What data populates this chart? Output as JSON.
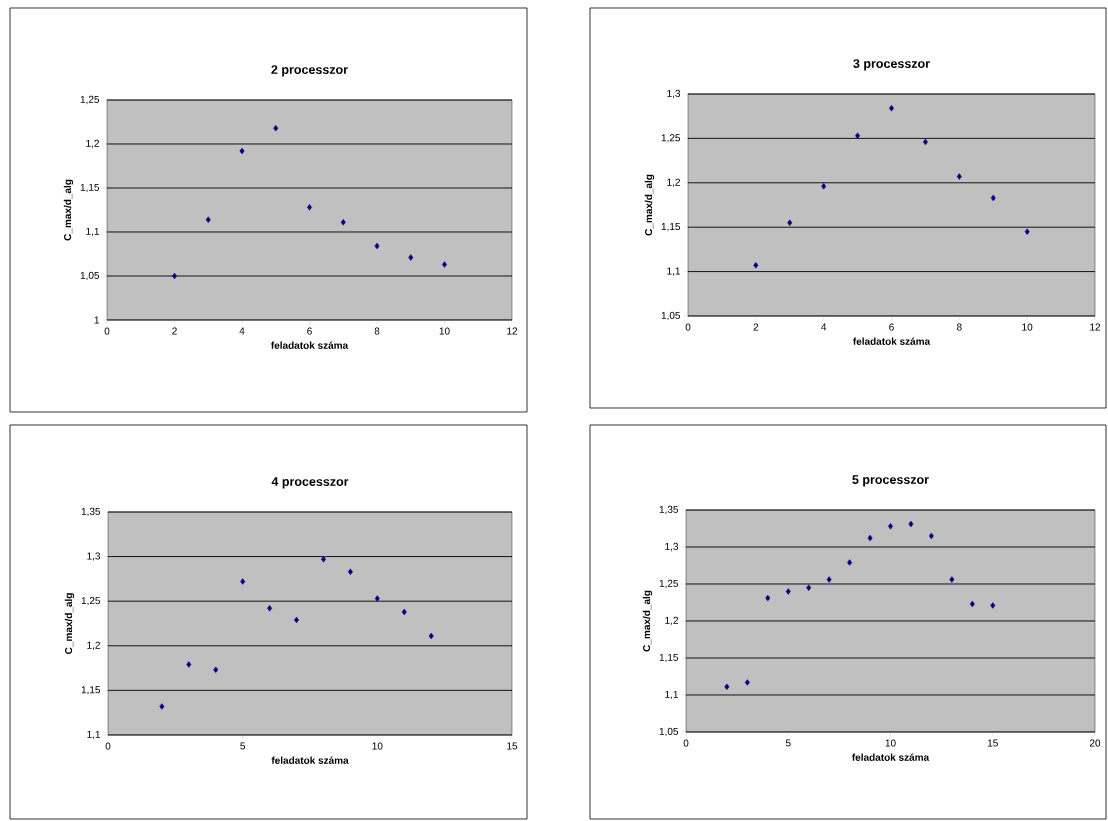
{
  "chart_data": [
    {
      "type": "scatter",
      "title": "2 processzor",
      "xlabel": "feladatok száma",
      "ylabel": "C_max/d_alg",
      "marker": "diamond",
      "grid": "y",
      "x": [
        2,
        3,
        4,
        5,
        6,
        7,
        8,
        9,
        10
      ],
      "series": [
        {
          "color": "#000080",
          "values": [
            1.05,
            1.114,
            1.192,
            1.218,
            1.128,
            1.111,
            1.084,
            1.071,
            1.063
          ]
        }
      ],
      "xlim": [
        0,
        12
      ],
      "xticks": [
        0,
        2,
        4,
        6,
        8,
        10,
        12
      ],
      "ylim": [
        1,
        1.25
      ],
      "yticks": [
        {
          "value": 1,
          "label": "1"
        },
        {
          "value": 1.05,
          "label": "1,05"
        },
        {
          "value": 1.1,
          "label": "1,1"
        },
        {
          "value": 1.15,
          "label": "1,15"
        },
        {
          "value": 1.2,
          "label": "1,2"
        },
        {
          "value": 1.25,
          "label": "1,25"
        }
      ]
    },
    {
      "type": "scatter",
      "title": "3 processzor",
      "xlabel": "feladatok száma",
      "ylabel": "C_max/d_alg",
      "marker": "diamond",
      "grid": "y",
      "x": [
        2,
        3,
        4,
        5,
        6,
        7,
        8,
        9,
        10
      ],
      "series": [
        {
          "color": "#000080",
          "values": [
            1.107,
            1.155,
            1.196,
            1.253,
            1.284,
            1.246,
            1.207,
            1.183,
            1.145
          ]
        }
      ],
      "xlim": [
        0,
        12
      ],
      "xticks": [
        0,
        2,
        4,
        6,
        8,
        10,
        12
      ],
      "ylim": [
        1.05,
        1.3
      ],
      "yticks": [
        {
          "value": 1.05,
          "label": "1,05"
        },
        {
          "value": 1.1,
          "label": "1,1"
        },
        {
          "value": 1.15,
          "label": "1,15"
        },
        {
          "value": 1.2,
          "label": "1,2"
        },
        {
          "value": 1.25,
          "label": "1,25"
        },
        {
          "value": 1.3,
          "label": "1,3"
        }
      ]
    },
    {
      "type": "scatter",
      "title": "4 processzor",
      "xlabel": "feladatok száma",
      "ylabel": "C_max/d_alg",
      "marker": "diamond",
      "grid": "y",
      "x": [
        2,
        3,
        4,
        5,
        6,
        7,
        8,
        9,
        10,
        11,
        12
      ],
      "series": [
        {
          "color": "#000080",
          "values": [
            1.132,
            1.179,
            1.173,
            1.272,
            1.242,
            1.229,
            1.297,
            1.283,
            1.253,
            1.238,
            1.211
          ]
        }
      ],
      "xlim": [
        0,
        15
      ],
      "xticks": [
        0,
        5,
        10,
        15
      ],
      "ylim": [
        1.1,
        1.35
      ],
      "yticks": [
        {
          "value": 1.1,
          "label": "1,1"
        },
        {
          "value": 1.15,
          "label": "1,15"
        },
        {
          "value": 1.2,
          "label": "1,2"
        },
        {
          "value": 1.25,
          "label": "1,25"
        },
        {
          "value": 1.3,
          "label": "1,3"
        },
        {
          "value": 1.35,
          "label": "1,35"
        }
      ]
    },
    {
      "type": "scatter",
      "title": "5 processzor",
      "xlabel": "feladatok száma",
      "ylabel": "C_max/d_alg",
      "marker": "diamond",
      "grid": "y",
      "x": [
        2,
        3,
        4,
        5,
        6,
        7,
        8,
        9,
        10,
        11,
        12,
        13,
        14,
        15
      ],
      "series": [
        {
          "color": "#000080",
          "values": [
            1.111,
            1.117,
            1.231,
            1.24,
            1.245,
            1.256,
            1.279,
            1.312,
            1.328,
            1.331,
            1.315,
            1.256,
            1.223,
            1.221
          ]
        }
      ],
      "xlim": [
        0,
        20
      ],
      "xticks": [
        0,
        5,
        10,
        15,
        20
      ],
      "ylim": [
        1.05,
        1.35
      ],
      "yticks": [
        {
          "value": 1.05,
          "label": "1,05"
        },
        {
          "value": 1.1,
          "label": "1,1"
        },
        {
          "value": 1.15,
          "label": "1,15"
        },
        {
          "value": 1.2,
          "label": "1,2"
        },
        {
          "value": 1.25,
          "label": "1,25"
        },
        {
          "value": 1.3,
          "label": "1,3"
        },
        {
          "value": 1.35,
          "label": "1,35"
        }
      ]
    }
  ]
}
